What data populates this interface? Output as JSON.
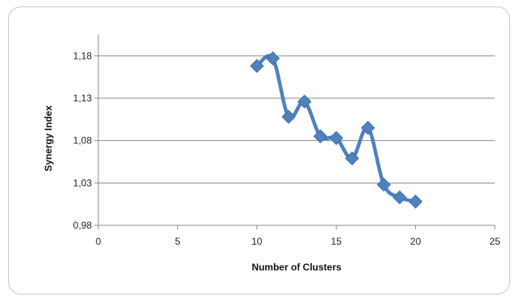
{
  "chart_data": {
    "type": "line",
    "title": "",
    "xlabel": "Number of Clusters",
    "ylabel": "Synergy Index",
    "xlim": [
      0,
      25
    ],
    "ylim": [
      0.98,
      1.205
    ],
    "x_ticks": [
      0,
      5,
      10,
      15,
      20,
      25
    ],
    "x_tick_labels": [
      "0",
      "5",
      "10",
      "15",
      "20",
      "25"
    ],
    "y_ticks": [
      0.98,
      1.03,
      1.08,
      1.13,
      1.18
    ],
    "y_tick_labels": [
      "0,98",
      "1,03",
      "1,08",
      "1,13",
      "1,18"
    ],
    "grid": "horizontal",
    "legend": "none",
    "series": [
      {
        "color": "#4f81bd",
        "marker": "diamond",
        "smooth": true,
        "x": [
          10,
          11,
          12,
          13,
          14,
          15,
          16,
          17,
          18,
          19,
          20
        ],
        "values": [
          1.168,
          1.177,
          1.108,
          1.126,
          1.085,
          1.083,
          1.059,
          1.095,
          1.028,
          1.013,
          1.008
        ]
      }
    ]
  }
}
